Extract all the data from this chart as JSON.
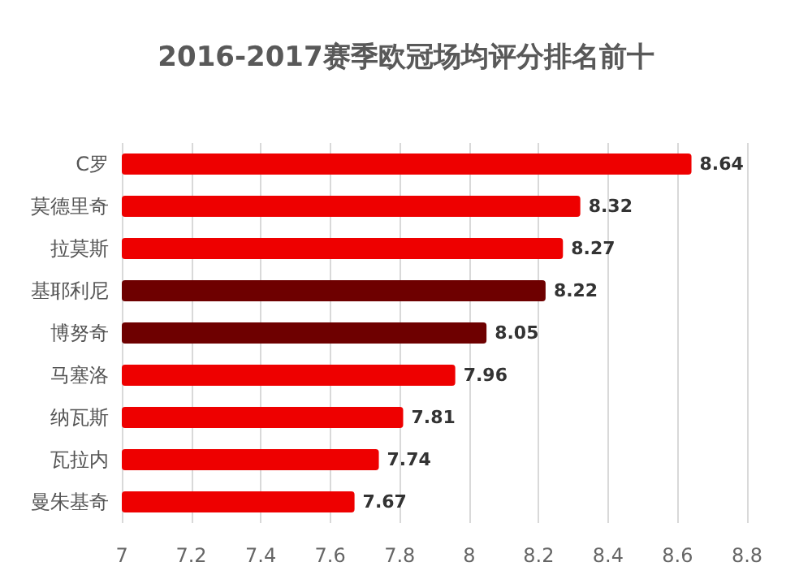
{
  "chart_data": {
    "type": "bar",
    "orientation": "horizontal",
    "title": "2016-2017赛季欧冠场均评分排名前十",
    "categories": [
      "C罗",
      "莫德里奇",
      "拉莫斯",
      "基耶利尼",
      "博努奇",
      "马塞洛",
      "纳瓦斯",
      "瓦拉内",
      "曼朱基奇"
    ],
    "values": [
      8.64,
      8.32,
      8.27,
      8.22,
      8.05,
      7.96,
      7.81,
      7.74,
      7.67
    ],
    "colors": [
      "#ee0000",
      "#ee0000",
      "#ee0000",
      "#6e0000",
      "#6e0000",
      "#ee0000",
      "#ee0000",
      "#ee0000",
      "#ee0000"
    ],
    "xlim": [
      7,
      8.8
    ],
    "xticks": [
      7,
      7.2,
      7.4,
      7.6,
      7.8,
      8,
      8.2,
      8.4,
      8.6,
      8.8
    ],
    "data_labels": true,
    "grid": "x"
  }
}
